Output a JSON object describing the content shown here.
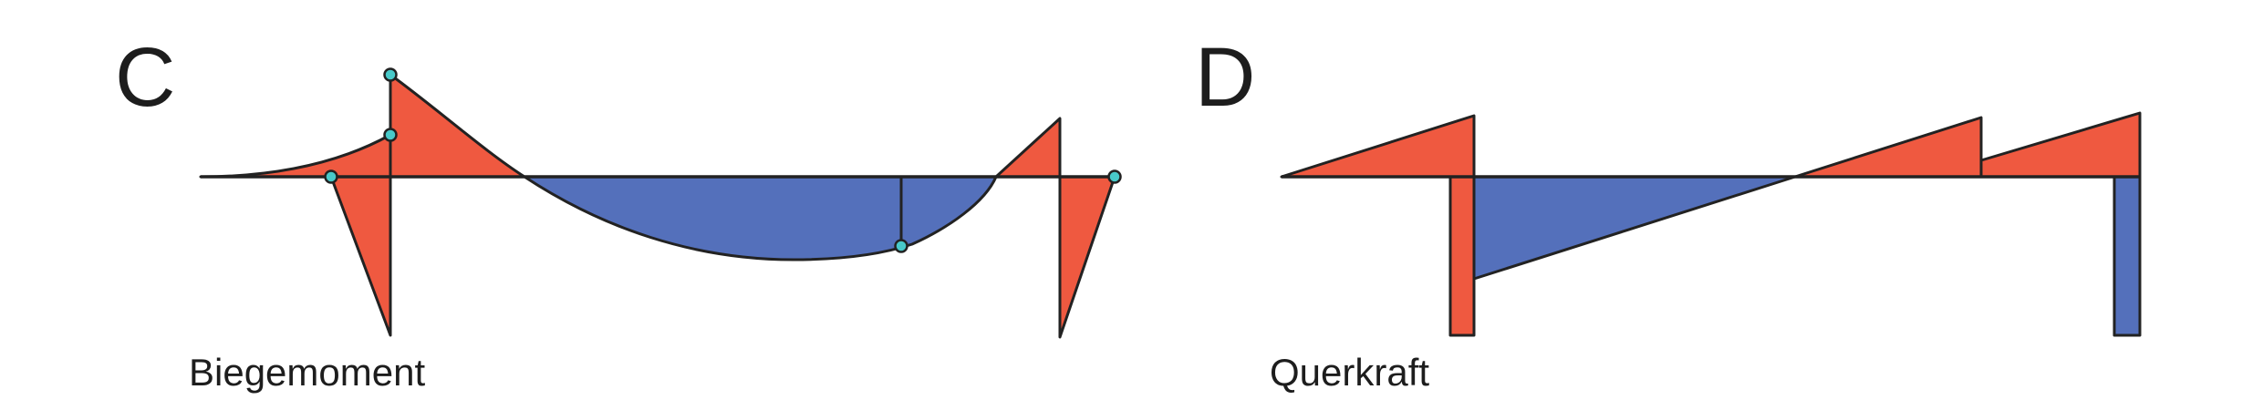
{
  "panel_c": {
    "letter": "C",
    "caption": "Biegemoment"
  },
  "panel_d": {
    "letter": "D",
    "caption": "Querkraft"
  },
  "colors": {
    "negative_fill": "#ef5940",
    "positive_fill": "#5470bb",
    "marker_fill": "#48c9c9",
    "outline": "#222222",
    "background": "#ffffff"
  }
}
